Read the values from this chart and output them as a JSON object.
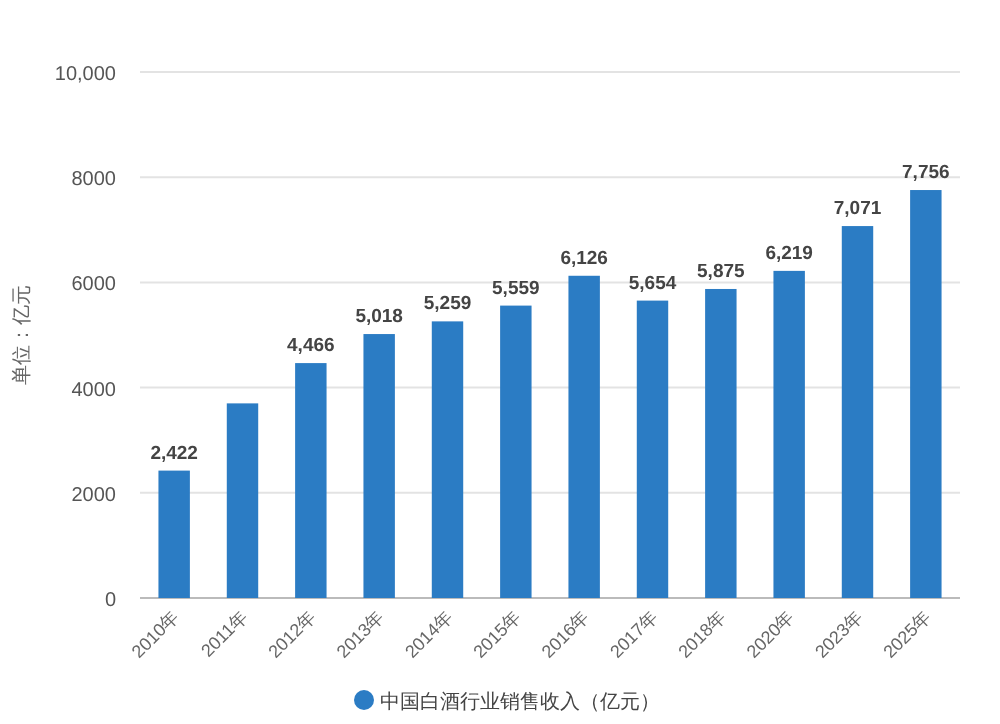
{
  "chart_data": {
    "type": "bar",
    "ylabel": "单位：亿元",
    "categories": [
      "2010年",
      "2011年",
      "2012年",
      "2013年",
      "2014年",
      "2015年",
      "2016年",
      "2017年",
      "2018年",
      "2020年",
      "2023年",
      "2025年"
    ],
    "series": [
      {
        "name": "中国白酒行业销售收入（亿元）",
        "color": "#2b7cc4",
        "values": [
          2422,
          3700,
          4466,
          5018,
          5259,
          5559,
          6126,
          5654,
          5875,
          6219,
          7071,
          7756
        ],
        "value_labels": [
          "2,422",
          null,
          "4,466",
          "5,018",
          "5,259",
          "5,559",
          "6,126",
          "5,654",
          "5,875",
          "6,219",
          "7,071",
          "7,756"
        ]
      }
    ],
    "ylim": [
      0,
      10000
    ],
    "yticks": [
      0,
      2000,
      4000,
      6000,
      8000,
      {
        "value": 10000,
        "label": "10,000"
      }
    ],
    "grid": "y",
    "legend": "bottom"
  }
}
